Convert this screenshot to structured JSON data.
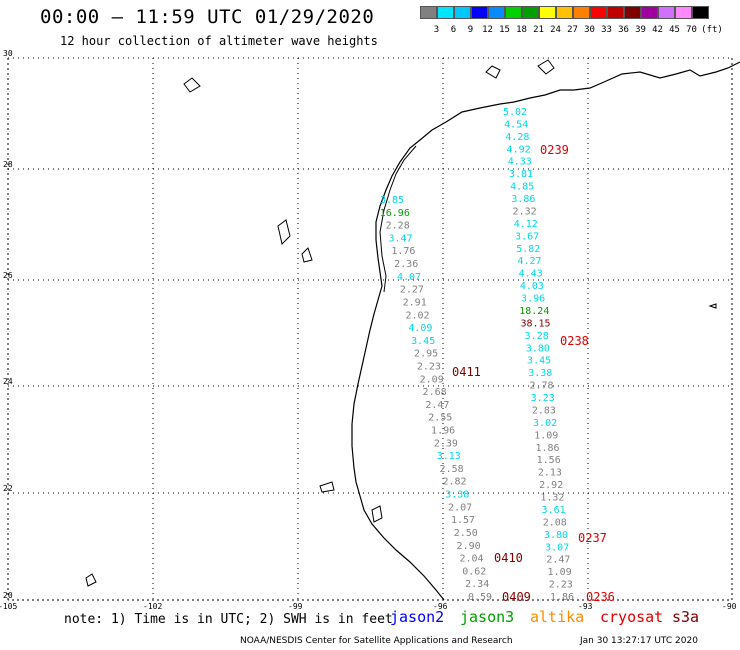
{
  "header": {
    "title": "00:00 – 11:59 UTC 01/29/2020",
    "subtitle": "12 hour collection of altimeter wave heights"
  },
  "scale": {
    "colors": [
      "#808080",
      "#00e5ff",
      "#00c8ff",
      "#0000ff",
      "#0a8aff",
      "#00d000",
      "#00a000",
      "#ffff00",
      "#ffc000",
      "#ff8000",
      "#ff0000",
      "#c00000",
      "#800000",
      "#a000a0",
      "#d070ff",
      "#ff88ff",
      "#000000"
    ],
    "labels": [
      "3",
      "6",
      "9",
      "12",
      "15",
      "18",
      "21",
      "24",
      "27",
      "30",
      "33",
      "36",
      "39",
      "42",
      "45",
      "70"
    ],
    "unit": "(ft)"
  },
  "axes": {
    "lat_labels": [
      "30",
      "28",
      "26",
      "24",
      "22",
      "20"
    ],
    "lon_labels": [
      "-105",
      "-102",
      "-99",
      "-96",
      "-93",
      "-90"
    ]
  },
  "tracks": [
    {
      "pass": "0411",
      "color": "#800000",
      "points": [
        {
          "v": "3.85",
          "c": "#00d8e8"
        },
        {
          "v": "16.96",
          "c": "#00a000"
        },
        {
          "v": "2.28",
          "c": "#808080"
        },
        {
          "v": "3.47",
          "c": "#00d8e8"
        },
        {
          "v": "1.76",
          "c": "#808080"
        },
        {
          "v": "2.36",
          "c": "#808080"
        },
        {
          "v": "4.07",
          "c": "#00d8e8"
        },
        {
          "v": "2.27",
          "c": "#808080"
        },
        {
          "v": "2.91",
          "c": "#808080"
        },
        {
          "v": "2.02",
          "c": "#808080"
        },
        {
          "v": "4.09",
          "c": "#00d8e8"
        },
        {
          "v": "3.45",
          "c": "#00d8e8"
        },
        {
          "v": "2.95",
          "c": "#808080"
        },
        {
          "v": "2.23",
          "c": "#808080"
        },
        {
          "v": "2.09",
          "c": "#808080"
        },
        {
          "v": "2.68",
          "c": "#808080"
        },
        {
          "v": "2.47",
          "c": "#808080"
        },
        {
          "v": "2.55",
          "c": "#808080"
        },
        {
          "v": "1.96",
          "c": "#808080"
        },
        {
          "v": "2.39",
          "c": "#808080"
        },
        {
          "v": "3.13",
          "c": "#00d8e8"
        },
        {
          "v": "2.58",
          "c": "#808080"
        },
        {
          "v": "2.82",
          "c": "#808080"
        },
        {
          "v": "3.38",
          "c": "#00d8e8"
        },
        {
          "v": "2.07",
          "c": "#808080"
        },
        {
          "v": "1.57",
          "c": "#808080"
        },
        {
          "v": "2.50",
          "c": "#808080"
        },
        {
          "v": "2.90",
          "c": "#808080"
        },
        {
          "v": "2.04",
          "c": "#808080"
        },
        {
          "v": "0.62",
          "c": "#808080"
        },
        {
          "v": "2.34",
          "c": "#808080"
        },
        {
          "v": "0.59",
          "c": "#808080"
        }
      ]
    },
    {
      "pass": "0239",
      "color": "#e00000",
      "points": [
        {
          "v": "5.02",
          "c": "#00d8e8"
        },
        {
          "v": "4.54",
          "c": "#00d8e8"
        },
        {
          "v": "4.28",
          "c": "#00d8e8"
        },
        {
          "v": "4.92",
          "c": "#00d8e8"
        },
        {
          "v": "4.33",
          "c": "#00d8e8"
        },
        {
          "v": "3.81",
          "c": "#00d8e8"
        },
        {
          "v": "4.85",
          "c": "#00d8e8"
        },
        {
          "v": "3.86",
          "c": "#00d8e8"
        },
        {
          "v": "2.32",
          "c": "#808080"
        },
        {
          "v": "4.12",
          "c": "#00d8e8"
        },
        {
          "v": "3.67",
          "c": "#00d8e8"
        },
        {
          "v": "5.82",
          "c": "#00d8e8"
        },
        {
          "v": "4.27",
          "c": "#00d8e8"
        },
        {
          "v": "4.43",
          "c": "#00d8e8"
        },
        {
          "v": "4.03",
          "c": "#00d8e8"
        },
        {
          "v": "3.96",
          "c": "#00d8e8"
        },
        {
          "v": "18.24",
          "c": "#00a000"
        },
        {
          "v": "38.15",
          "c": "#800000"
        },
        {
          "v": "3.28",
          "c": "#00d8e8"
        },
        {
          "v": "3.80",
          "c": "#00d8e8"
        },
        {
          "v": "3.45",
          "c": "#00d8e8"
        },
        {
          "v": "3.38",
          "c": "#00d8e8"
        },
        {
          "v": "2.78",
          "c": "#808080"
        },
        {
          "v": "3.23",
          "c": "#00d8e8"
        },
        {
          "v": "2.83",
          "c": "#808080"
        },
        {
          "v": "3.02",
          "c": "#00d8e8"
        },
        {
          "v": "1.09",
          "c": "#808080"
        },
        {
          "v": "1.86",
          "c": "#808080"
        },
        {
          "v": "1.56",
          "c": "#808080"
        },
        {
          "v": "2.13",
          "c": "#808080"
        },
        {
          "v": "2.92",
          "c": "#808080"
        },
        {
          "v": "1.32",
          "c": "#808080"
        },
        {
          "v": "3.61",
          "c": "#00d8e8"
        },
        {
          "v": "2.08",
          "c": "#808080"
        },
        {
          "v": "3.80",
          "c": "#00d8e8"
        },
        {
          "v": "3.07",
          "c": "#00d8e8"
        },
        {
          "v": "2.47",
          "c": "#808080"
        },
        {
          "v": "1.09",
          "c": "#808080"
        },
        {
          "v": "2.23",
          "c": "#808080"
        },
        {
          "v": "1.86",
          "c": "#808080"
        }
      ]
    }
  ],
  "pass_labels": [
    {
      "text": "0239",
      "color": "#e00000"
    },
    {
      "text": "0238",
      "color": "#e00000"
    },
    {
      "text": "0411",
      "color": "#800000"
    },
    {
      "text": "0237",
      "color": "#e00000"
    },
    {
      "text": "0410",
      "color": "#800000"
    },
    {
      "text": "0409",
      "color": "#800000"
    },
    {
      "text": "0236",
      "color": "#e00000"
    }
  ],
  "footer": {
    "note": "note: 1) Time is in UTC; 2) SWH is in feet",
    "legend": [
      {
        "name": "jason2",
        "color": "#0000ff"
      },
      {
        "name": "jason3",
        "color": "#00a000"
      },
      {
        "name": "altika",
        "color": "#ff8c00"
      },
      {
        "name": "cryosat",
        "color": "#e00000"
      },
      {
        "name": "s3a",
        "color": "#800000"
      }
    ],
    "credit": "NOAA/NESDIS Center for Satellite Applications and Research",
    "timestamp": "Jan 30 13:27:17 UTC 2020"
  }
}
